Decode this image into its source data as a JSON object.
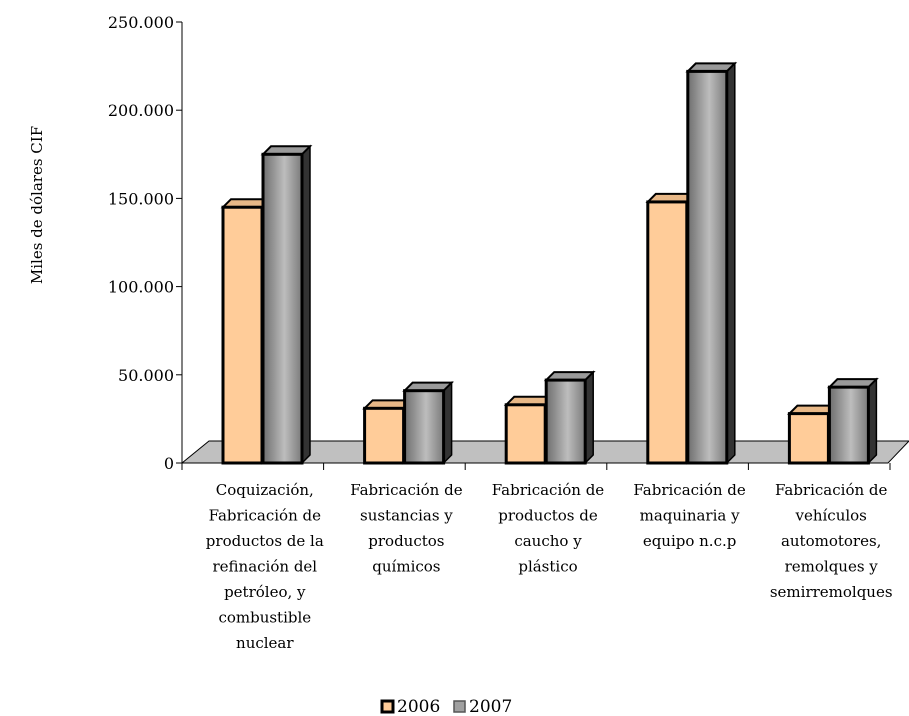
{
  "chart_data": {
    "type": "bar",
    "title": "",
    "xlabel": "",
    "ylabel": "Miles de dólares CIF",
    "ylim": [
      0,
      250000
    ],
    "yticks": [
      "0",
      "50.000",
      "100.000",
      "150.000",
      "200.000",
      "250.000"
    ],
    "ytick_values": [
      0,
      50000,
      100000,
      150000,
      200000,
      250000
    ],
    "categories": [
      [
        "Coquización,",
        "Fabricación de",
        "productos de la",
        "refinación del",
        "petróleo, y",
        "combustible",
        "nuclear"
      ],
      [
        "Fabricación de",
        "sustancias y",
        "productos",
        "químicos"
      ],
      [
        "Fabricación de",
        "productos de",
        "caucho y",
        "plástico"
      ],
      [
        "Fabricación de",
        "maquinaria y",
        "equipo n.c.p"
      ],
      [
        "Fabricación de",
        "vehículos",
        "automotores,",
        "remolques y",
        "semirremolques"
      ]
    ],
    "series": [
      {
        "name": "2006",
        "values": [
          145000,
          31000,
          33000,
          148000,
          28000
        ],
        "color": "#FFCC99"
      },
      {
        "name": "2007",
        "values": [
          175000,
          41000,
          47000,
          222000,
          43000
        ],
        "color": "#969696"
      }
    ],
    "legend_position": "bottom",
    "grid": false
  }
}
